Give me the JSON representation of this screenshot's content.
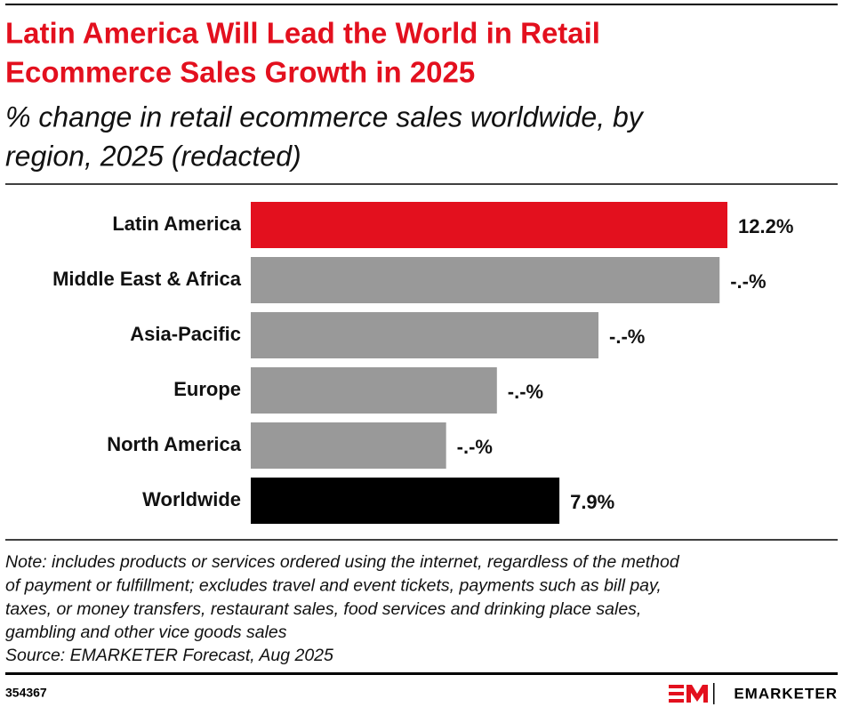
{
  "chart_data": {
    "type": "bar",
    "orientation": "horizontal",
    "title": [
      "Latin America Will Lead the World in Retail",
      "Ecommerce Sales Growth in 2025"
    ],
    "subtitle": [
      "% change in retail ecommerce sales worldwide, by",
      "region, 2025 (redacted)"
    ],
    "categories": [
      "Latin America",
      "Middle East & Africa",
      "Asia-Pacific",
      "Europe",
      "North America",
      "Worldwide"
    ],
    "values": [
      12.2,
      12.0,
      8.9,
      6.3,
      5.0,
      7.9
    ],
    "value_labels": [
      "12.2%",
      "-.-%",
      "-.-%",
      "-.-%",
      "-.-%",
      "7.9%"
    ],
    "colors": [
      "#e3101e",
      "#999999",
      "#999999",
      "#999999",
      "#999999",
      "#000000"
    ],
    "note": [
      "Note: includes products or services ordered using the internet, regardless of the method",
      "of payment or fulfillment; excludes travel and event tickets, payments such as bill pay,",
      "taxes, or money transfers, restaurant sales, food services and drinking place sales,",
      "gambling and other vice goods sales"
    ],
    "source": "Source: EMARKETER Forecast, Aug 2025",
    "chart_id": "354367",
    "brand": "EMARKETER"
  }
}
